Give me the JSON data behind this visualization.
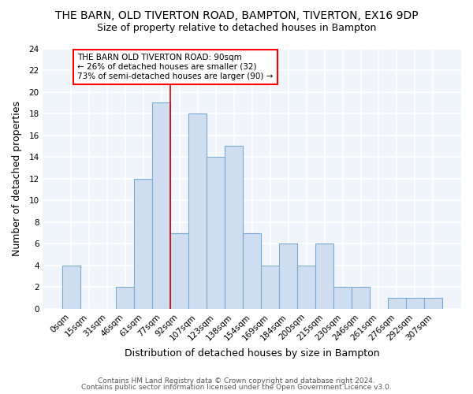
{
  "title1": "THE BARN, OLD TIVERTON ROAD, BAMPTON, TIVERTON, EX16 9DP",
  "title2": "Size of property relative to detached houses in Bampton",
  "xlabel": "Distribution of detached houses by size in Bampton",
  "ylabel": "Number of detached properties",
  "bar_labels": [
    "0sqm",
    "15sqm",
    "31sqm",
    "46sqm",
    "61sqm",
    "77sqm",
    "92sqm",
    "107sqm",
    "123sqm",
    "138sqm",
    "154sqm",
    "169sqm",
    "184sqm",
    "200sqm",
    "215sqm",
    "230sqm",
    "246sqm",
    "261sqm",
    "276sqm",
    "292sqm",
    "307sqm"
  ],
  "bar_heights": [
    4,
    0,
    0,
    2,
    12,
    19,
    7,
    18,
    14,
    15,
    7,
    4,
    6,
    4,
    6,
    2,
    2,
    0,
    1,
    1,
    1
  ],
  "bar_color": "#cfddf0",
  "bar_edge_color": "#7aaad0",
  "vline_x": 6,
  "vline_color": "#cc0000",
  "annotation_text": "THE BARN OLD TIVERTON ROAD: 90sqm\n← 26% of detached houses are smaller (32)\n73% of semi-detached houses are larger (90) →",
  "ylim": [
    0,
    24
  ],
  "yticks": [
    0,
    2,
    4,
    6,
    8,
    10,
    12,
    14,
    16,
    18,
    20,
    22,
    24
  ],
  "footer1": "Contains HM Land Registry data © Crown copyright and database right 2024.",
  "footer2": "Contains public sector information licensed under the Open Government Licence v3.0.",
  "bg_color": "#ffffff",
  "plot_bg_color": "#f0f4fb",
  "grid_color": "#ffffff",
  "title1_fontsize": 10,
  "title2_fontsize": 9,
  "annotation_fontsize": 7.5,
  "axis_label_fontsize": 9,
  "tick_fontsize": 7.5,
  "footer_fontsize": 6.5
}
